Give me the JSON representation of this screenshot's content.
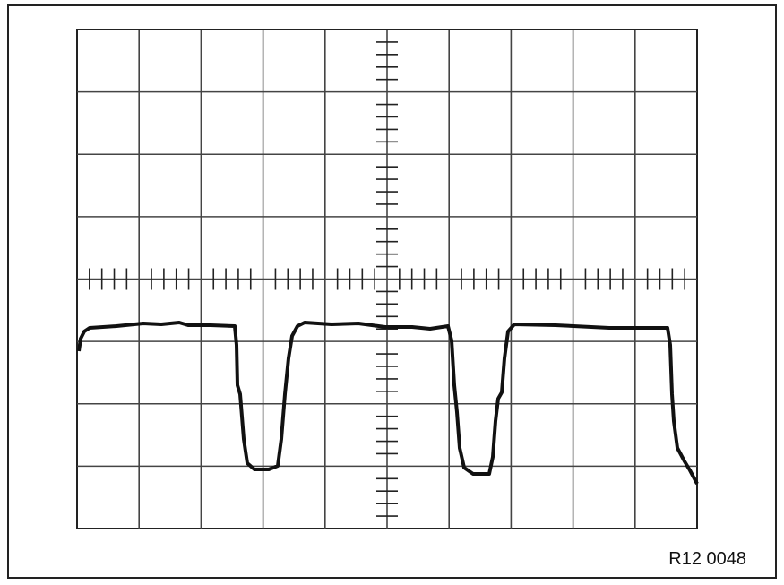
{
  "figure_id": "R12 0048"
}
